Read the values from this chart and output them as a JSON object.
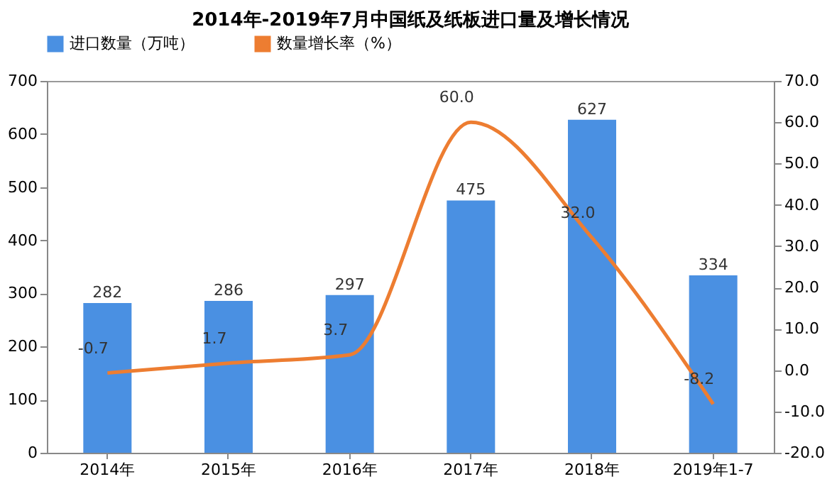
{
  "chart_data": {
    "type": "bar",
    "title": "2014年-2019年7月中国纸及纸板进口量及增长情况",
    "categories": [
      "2014年",
      "2015年",
      "2016年",
      "2017年",
      "2018年",
      "2019年1-7"
    ],
    "series": [
      {
        "name": "进口数量（万吨）",
        "color": "#4a90e2",
        "values": [
          282,
          286,
          297,
          475,
          627,
          334
        ]
      },
      {
        "name": "数量增长率（%）",
        "type": "line",
        "axis": "y2",
        "color": "#ed7d31",
        "values": [
          -0.7,
          1.7,
          3.7,
          60.0,
          32.0,
          -8.2
        ],
        "value_labels": [
          "-0.7",
          "1.7",
          "3.7",
          "60.0",
          "32.0",
          "-8.2"
        ]
      }
    ],
    "ylim": [
      0,
      700
    ],
    "yticks": [
      0,
      100,
      200,
      300,
      400,
      500,
      600,
      700
    ],
    "y2lim": [
      -20,
      70
    ],
    "y2ticks": [
      {
        "value": -20,
        "label": "-20.0"
      },
      {
        "value": -10,
        "label": "-10.0"
      },
      {
        "value": 0,
        "label": "0.0"
      },
      {
        "value": 10,
        "label": "10.0"
      },
      {
        "value": 20,
        "label": "20.0"
      },
      {
        "value": 30,
        "label": "30.0"
      },
      {
        "value": 40,
        "label": "40.0"
      },
      {
        "value": 50,
        "label": "50.0"
      },
      {
        "value": 60,
        "label": "60.0"
      },
      {
        "value": 70,
        "label": "70.0"
      }
    ],
    "data_labels": true,
    "legend": "top",
    "grid": false,
    "marker": "none"
  }
}
